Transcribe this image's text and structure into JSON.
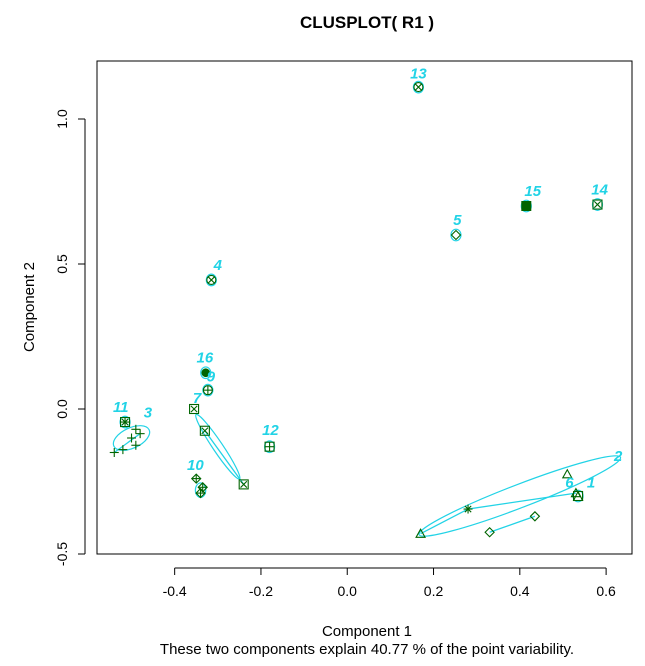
{
  "chart_data": {
    "type": "scatter",
    "title": "CLUSPLOT( R1 )",
    "xlabel": "Component 1",
    "ylabel": "Component 2",
    "subtitle": "These two components explain 40.77 % of the point variability.",
    "xlim": [
      -0.58,
      0.66
    ],
    "ylim": [
      -0.5,
      1.2
    ],
    "xticks": [
      -0.4,
      -0.2,
      0.0,
      0.2,
      0.4,
      0.6
    ],
    "xtick_labels": [
      "-0.4",
      "-0.2",
      "0.0",
      "0.2",
      "0.4",
      "0.6"
    ],
    "yticks": [
      -0.5,
      0.0,
      0.5,
      1.0
    ],
    "ytick_labels": [
      "-0.5",
      "0.0",
      "0.5",
      "1.0"
    ],
    "grid": false,
    "colors": {
      "points": "#006400",
      "ellipses": "#22d3e6",
      "labels": "#22d3e6",
      "axis": "#000000"
    },
    "clusters": [
      {
        "label": "1",
        "label_pos": [
          0.565,
          -0.27
        ],
        "ellipse": {
          "center": [
            0.535,
            -0.3
          ],
          "rx": 0.01,
          "ry": 0.02,
          "angle": 0
        },
        "points": [
          {
            "x": 0.535,
            "y": -0.3,
            "marker": "boxed-triangle"
          }
        ]
      },
      {
        "label": "2",
        "label_pos": [
          0.628,
          -0.18
        ],
        "ellipse": {
          "center": [
            0.4,
            -0.3
          ],
          "rx": 0.25,
          "ry": 0.04,
          "angle": 21
        },
        "points": [
          {
            "x": 0.51,
            "y": -0.225,
            "marker": "triangle"
          },
          {
            "x": 0.53,
            "y": -0.29,
            "marker": "triangle"
          },
          {
            "x": 0.17,
            "y": -0.43,
            "marker": "triangle"
          },
          {
            "x": 0.28,
            "y": -0.345,
            "marker": "star"
          }
        ]
      },
      {
        "label": "3",
        "label_pos": [
          -0.462,
          -0.03
        ],
        "ellipse": {
          "center": [
            -0.5,
            -0.1
          ],
          "rx": 0.045,
          "ry": 0.035,
          "angle": 25
        },
        "points": [
          {
            "x": -0.48,
            "y": -0.085,
            "marker": "plus"
          },
          {
            "x": -0.49,
            "y": -0.07,
            "marker": "plus"
          },
          {
            "x": -0.5,
            "y": -0.1,
            "marker": "plus"
          },
          {
            "x": -0.49,
            "y": -0.125,
            "marker": "plus"
          },
          {
            "x": -0.52,
            "y": -0.14,
            "marker": "plus"
          },
          {
            "x": -0.54,
            "y": -0.15,
            "marker": "plus"
          }
        ]
      },
      {
        "label": "4",
        "label_pos": [
          -0.3,
          0.48
        ],
        "ellipse": {
          "center": [
            -0.315,
            0.445
          ],
          "rx": 0.01,
          "ry": 0.02,
          "angle": 0
        },
        "points": [
          {
            "x": -0.315,
            "y": 0.445,
            "marker": "circle-x"
          }
        ]
      },
      {
        "label": "5",
        "label_pos": [
          0.255,
          0.635
        ],
        "ellipse": {
          "center": [
            0.252,
            0.6
          ],
          "rx": 0.01,
          "ry": 0.02,
          "angle": 0
        },
        "points": [
          {
            "x": 0.252,
            "y": 0.6,
            "marker": "diamond"
          }
        ]
      },
      {
        "label": "6",
        "label_pos": [
          0.515,
          -0.27
        ],
        "ellipse": null,
        "points": [
          {
            "x": 0.435,
            "y": -0.37,
            "marker": "diamond"
          },
          {
            "x": 0.33,
            "y": -0.425,
            "marker": "diamond"
          }
        ]
      },
      {
        "label": "7",
        "label_pos": [
          -0.348,
          0.02
        ],
        "ellipse": {
          "center": [
            -0.3,
            -0.13
          ],
          "rx": 0.09,
          "ry": 0.01,
          "angle": -56
        },
        "points": [
          {
            "x": -0.355,
            "y": 0.0,
            "marker": "boxed-x"
          },
          {
            "x": -0.33,
            "y": -0.075,
            "marker": "boxed-x"
          },
          {
            "x": -0.24,
            "y": -0.26,
            "marker": "boxed-x"
          }
        ]
      },
      {
        "label": "9",
        "label_pos": [
          -0.316,
          0.095
        ],
        "ellipse": {
          "center": [
            -0.323,
            0.065
          ],
          "rx": 0.01,
          "ry": 0.02,
          "angle": 0
        },
        "points": [
          {
            "x": -0.323,
            "y": 0.065,
            "marker": "circle-plus"
          }
        ]
      },
      {
        "label": "10",
        "label_pos": [
          -0.352,
          -0.21
        ],
        "ellipse": {
          "center": [
            -0.34,
            -0.28
          ],
          "rx": 0.012,
          "ry": 0.025,
          "angle": 0
        },
        "points": [
          {
            "x": -0.35,
            "y": -0.24,
            "marker": "diamond-plus"
          },
          {
            "x": -0.335,
            "y": -0.27,
            "marker": "diamond-plus"
          },
          {
            "x": -0.34,
            "y": -0.29,
            "marker": "diamond-plus"
          }
        ]
      },
      {
        "label": "11",
        "label_pos": [
          -0.525,
          -0.01
        ],
        "ellipse": {
          "center": [
            -0.515,
            -0.045
          ],
          "rx": 0.01,
          "ry": 0.02,
          "angle": 0
        },
        "points": [
          {
            "x": -0.515,
            "y": -0.045,
            "marker": "boxed-asterisk"
          }
        ]
      },
      {
        "label": "12",
        "label_pos": [
          -0.178,
          -0.09
        ],
        "ellipse": {
          "center": [
            -0.18,
            -0.13
          ],
          "rx": 0.01,
          "ry": 0.02,
          "angle": 0
        },
        "points": [
          {
            "x": -0.18,
            "y": -0.13,
            "marker": "boxed-plus"
          }
        ]
      },
      {
        "label": "13",
        "label_pos": [
          0.165,
          1.14
        ],
        "ellipse": {
          "center": [
            0.165,
            1.11
          ],
          "rx": 0.01,
          "ry": 0.02,
          "angle": 0
        },
        "points": [
          {
            "x": 0.165,
            "y": 1.11,
            "marker": "circle-x"
          }
        ]
      },
      {
        "label": "14",
        "label_pos": [
          0.585,
          0.74
        ],
        "ellipse": {
          "center": [
            0.58,
            0.705
          ],
          "rx": 0.01,
          "ry": 0.02,
          "angle": 0
        },
        "points": [
          {
            "x": 0.58,
            "y": 0.705,
            "marker": "boxed-x"
          }
        ]
      },
      {
        "label": "15",
        "label_pos": [
          0.43,
          0.735
        ],
        "ellipse": {
          "center": [
            0.415,
            0.7
          ],
          "rx": 0.01,
          "ry": 0.02,
          "angle": 0
        },
        "points": [
          {
            "x": 0.415,
            "y": 0.7,
            "marker": "filled-square"
          }
        ]
      },
      {
        "label": "16",
        "label_pos": [
          -0.33,
          0.16
        ],
        "ellipse": {
          "center": [
            -0.328,
            0.125
          ],
          "rx": 0.01,
          "ry": 0.02,
          "angle": 0
        },
        "points": [
          {
            "x": -0.328,
            "y": 0.125,
            "marker": "filled-circle"
          }
        ]
      }
    ],
    "segments": [
      {
        "from": [
          -0.33,
          -0.075
        ],
        "to": [
          -0.24,
          -0.26
        ]
      },
      {
        "from": [
          0.28,
          -0.345
        ],
        "to": [
          0.53,
          -0.29
        ]
      },
      {
        "from": [
          0.17,
          -0.43
        ],
        "to": [
          0.28,
          -0.345
        ]
      },
      {
        "from": [
          0.33,
          -0.425
        ],
        "to": [
          0.435,
          -0.37
        ]
      },
      {
        "from": [
          -0.54,
          -0.15
        ],
        "to": [
          -0.48,
          -0.085
        ]
      }
    ]
  }
}
